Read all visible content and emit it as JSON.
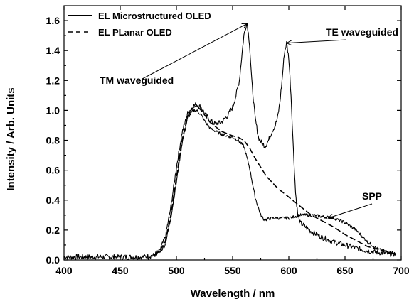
{
  "chart_data": {
    "type": "line",
    "xlabel": "Wavelength / nm",
    "ylabel": "Intensity / Arb. Units",
    "xlim": [
      400,
      700
    ],
    "ylim": [
      0.0,
      1.7
    ],
    "xticks": [
      400,
      450,
      500,
      550,
      600,
      650,
      700
    ],
    "xtick_labels": [
      "400",
      "450",
      "500",
      "550",
      "600",
      "650",
      "700"
    ],
    "yticks": [
      0.0,
      0.2,
      0.4,
      0.6,
      0.8,
      1.0,
      1.2,
      1.4,
      1.6
    ],
    "ytick_labels": [
      "0.0",
      "0.2",
      "0.4",
      "0.6",
      "0.8",
      "1.0",
      "1.2",
      "1.4",
      "1.6"
    ],
    "grid": false,
    "legend_position": "top-left",
    "series": [
      {
        "name": "EL Microstructured OLED",
        "style": "solid",
        "x": [
          400,
          420,
          440,
          460,
          470,
          480,
          485,
          490,
          495,
          500,
          505,
          510,
          515,
          518,
          522,
          525,
          530,
          535,
          540,
          545,
          550,
          553,
          556,
          558,
          560,
          562,
          563,
          565,
          567,
          570,
          573,
          576,
          579,
          582,
          585,
          588,
          590,
          592,
          594,
          596,
          598,
          600,
          602,
          604,
          606,
          608,
          610,
          615,
          620,
          630,
          640,
          650,
          660,
          670,
          680,
          690,
          695
        ],
        "y": [
          0.02,
          0.02,
          0.02,
          0.02,
          0.02,
          0.03,
          0.06,
          0.15,
          0.35,
          0.62,
          0.85,
          0.98,
          1.03,
          1.04,
          1.02,
          0.98,
          0.93,
          0.91,
          0.92,
          0.96,
          1.02,
          1.1,
          1.2,
          1.35,
          1.5,
          1.57,
          1.58,
          1.45,
          1.2,
          0.95,
          0.82,
          0.78,
          0.76,
          0.8,
          0.86,
          0.9,
          0.95,
          1.05,
          1.2,
          1.38,
          1.45,
          1.35,
          1.1,
          0.75,
          0.45,
          0.3,
          0.25,
          0.22,
          0.19,
          0.15,
          0.12,
          0.1,
          0.08,
          0.06,
          0.05,
          0.04,
          0.04
        ]
      },
      {
        "name": "EL PLanar OLED",
        "style": "dashed",
        "x": [
          480,
          485,
          490,
          495,
          500,
          505,
          510,
          515,
          518,
          522,
          525,
          530,
          540,
          550,
          555,
          560,
          565,
          570,
          575,
          580,
          585,
          590,
          600,
          610,
          620,
          630,
          640,
          650,
          660,
          670,
          680,
          690,
          695
        ],
        "y": [
          0.03,
          0.06,
          0.12,
          0.3,
          0.55,
          0.8,
          0.96,
          1.02,
          1.03,
          1.0,
          0.97,
          0.92,
          0.86,
          0.83,
          0.82,
          0.8,
          0.75,
          0.68,
          0.62,
          0.56,
          0.52,
          0.48,
          0.42,
          0.36,
          0.3,
          0.26,
          0.22,
          0.17,
          0.13,
          0.09,
          0.07,
          0.05,
          0.04
        ]
      },
      {
        "name": "",
        "style": "solid",
        "x": [
          480,
          485,
          490,
          495,
          500,
          505,
          510,
          515,
          518,
          522,
          525,
          530,
          540,
          550,
          555,
          560,
          565,
          570,
          575,
          578,
          580,
          585,
          590,
          600,
          610,
          620,
          630,
          640,
          650,
          660,
          670,
          680,
          690,
          695
        ],
        "y": [
          0.03,
          0.05,
          0.1,
          0.28,
          0.52,
          0.78,
          0.95,
          1.0,
          1.0,
          0.97,
          0.93,
          0.88,
          0.84,
          0.82,
          0.8,
          0.76,
          0.62,
          0.42,
          0.3,
          0.27,
          0.27,
          0.28,
          0.28,
          0.28,
          0.3,
          0.3,
          0.29,
          0.28,
          0.25,
          0.2,
          0.12,
          0.07,
          0.05,
          0.04
        ]
      }
    ],
    "annotations": [
      {
        "text": "TM waveguided",
        "x": 563,
        "y": 1.58
      },
      {
        "text": "TE waveguided",
        "x": 598,
        "y": 1.45
      },
      {
        "text": "SPP",
        "x": 635,
        "y": 0.28
      }
    ]
  }
}
